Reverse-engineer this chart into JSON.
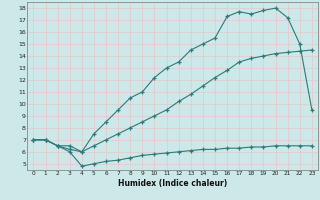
{
  "xlabel": "Humidex (Indice chaleur)",
  "xlim": [
    -0.5,
    23.5
  ],
  "ylim": [
    4.5,
    18.5
  ],
  "xticks": [
    0,
    1,
    2,
    3,
    4,
    5,
    6,
    7,
    8,
    9,
    10,
    11,
    12,
    13,
    14,
    15,
    16,
    17,
    18,
    19,
    20,
    21,
    22,
    23
  ],
  "yticks": [
    5,
    6,
    7,
    8,
    9,
    10,
    11,
    12,
    13,
    14,
    15,
    16,
    17,
    18
  ],
  "bg_color": "#cce8e8",
  "line_color": "#2d7a7a",
  "grid_color": "#b8d8d8",
  "curve_top": [
    7.0,
    7.0,
    6.5,
    6.5,
    6.0,
    7.5,
    8.5,
    9.5,
    10.5,
    11.0,
    12.2,
    13.0,
    13.5,
    14.5,
    15.0,
    15.5,
    17.3,
    17.7,
    17.5,
    17.8,
    18.0,
    17.2,
    15.0,
    9.5
  ],
  "curve_mid": [
    7.0,
    7.0,
    6.5,
    6.2,
    6.0,
    6.5,
    7.0,
    7.5,
    8.0,
    8.5,
    9.0,
    9.5,
    10.2,
    10.8,
    11.5,
    12.2,
    12.8,
    13.5,
    13.8,
    14.0,
    14.2,
    14.3,
    14.4,
    14.5
  ],
  "curve_bot": [
    7.0,
    7.0,
    6.5,
    6.0,
    4.8,
    5.0,
    5.2,
    5.3,
    5.5,
    5.7,
    5.8,
    5.9,
    6.0,
    6.1,
    6.2,
    6.2,
    6.3,
    6.3,
    6.4,
    6.4,
    6.5,
    6.5,
    6.5,
    6.5
  ]
}
